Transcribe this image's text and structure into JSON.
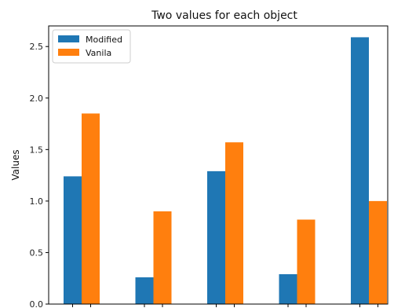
{
  "chart_data": {
    "type": "bar",
    "title": "Two values for each object",
    "xlabel": "",
    "ylabel": "Values",
    "ylim": [
      0,
      2.7
    ],
    "yticks": [
      "0.0",
      "0.5",
      "1.0",
      "1.5",
      "2.0",
      "2.5"
    ],
    "ytick_values": [
      0,
      0.5,
      1.0,
      1.5,
      2.0,
      2.5
    ],
    "categories": [
      "",
      "",
      "",
      "",
      ""
    ],
    "series": [
      {
        "name": "Modified",
        "color": "#1f77b4",
        "values": [
          1.24,
          0.26,
          1.29,
          0.29,
          2.59
        ]
      },
      {
        "name": "Vanila",
        "color": "#ff7f0e",
        "values": [
          1.85,
          0.9,
          1.57,
          0.82,
          1.0
        ]
      }
    ],
    "grid": false,
    "legend_position": "top-left"
  }
}
